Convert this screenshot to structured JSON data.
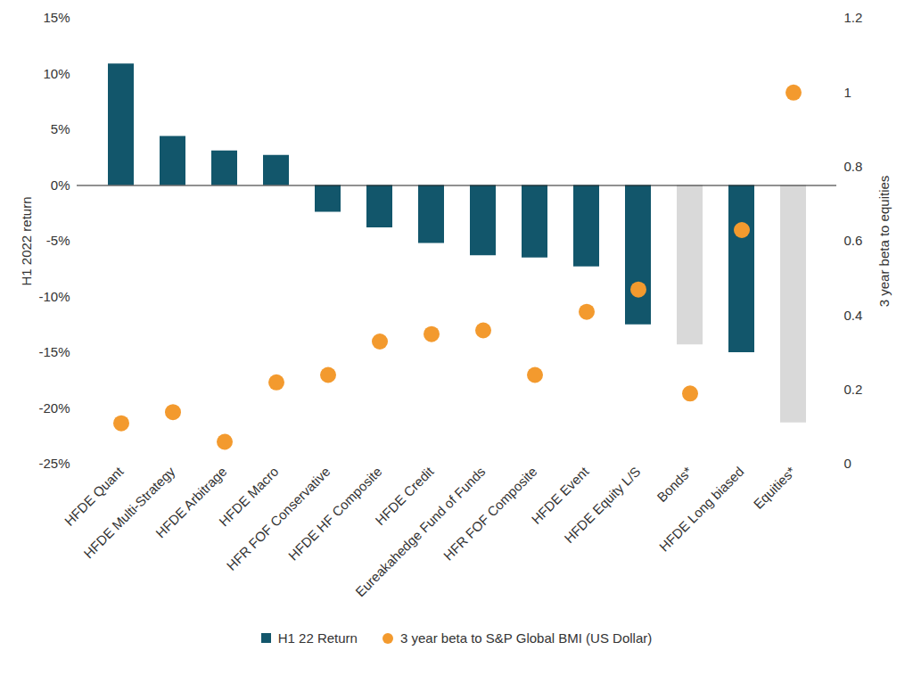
{
  "chart_data": {
    "type": "bar",
    "categories": [
      "HFDE Quant",
      "HFDE Multi-Strategy",
      "HFDE Arbitrage",
      "HFDE Macro",
      "HFR FOF Conservative",
      "HFDE HF Composite",
      "HFDE Credit",
      "Eureakahedge Fund of Funds",
      "HFR FOF Composite",
      "HFDE Event",
      "HFDE Equity L/S",
      "Bonds*",
      "HFDE Long biased",
      "Equities*"
    ],
    "series": [
      {
        "name": "H1 22 Return",
        "type": "bar",
        "color": "#12566b",
        "colors": [
          "#12566b",
          "#12566b",
          "#12566b",
          "#12566b",
          "#12566b",
          "#12566b",
          "#12566b",
          "#12566b",
          "#12566b",
          "#12566b",
          "#12566b",
          "#d9d9d9",
          "#12566b",
          "#d9d9d9"
        ],
        "values": [
          10.9,
          4.4,
          3.1,
          2.7,
          -2.4,
          -3.8,
          -5.2,
          -6.3,
          -6.5,
          -7.3,
          -12.5,
          -14.3,
          -15.0,
          -21.3
        ]
      },
      {
        "name": "3 year beta to S&P Global BMI (US Dollar)",
        "type": "scatter",
        "axis": "y2",
        "color": "#f39a2e",
        "marker": "circle",
        "values": [
          0.11,
          0.14,
          0.06,
          0.22,
          0.24,
          0.33,
          0.35,
          0.36,
          0.24,
          0.41,
          0.47,
          0.19,
          0.63,
          1.0
        ]
      }
    ],
    "ylabel": "H1 2022 return",
    "y2label": "3 year beta to equities",
    "ylim": [
      -25,
      15
    ],
    "yticks": [
      {
        "value": -25,
        "label": "-25%"
      },
      {
        "value": -20,
        "label": "-20%"
      },
      {
        "value": -15,
        "label": "-15%"
      },
      {
        "value": -10,
        "label": "-10%"
      },
      {
        "value": -5,
        "label": "-5%"
      },
      {
        "value": 0,
        "label": "0%"
      },
      {
        "value": 5,
        "label": "5%"
      },
      {
        "value": 10,
        "label": "10%"
      },
      {
        "value": 15,
        "label": "15%"
      }
    ],
    "y2lim": [
      0,
      1.2
    ],
    "y2ticks": [
      0,
      0.2,
      0.4,
      0.6,
      0.8,
      1,
      1.2
    ],
    "grid": false,
    "legend": "bottom"
  }
}
